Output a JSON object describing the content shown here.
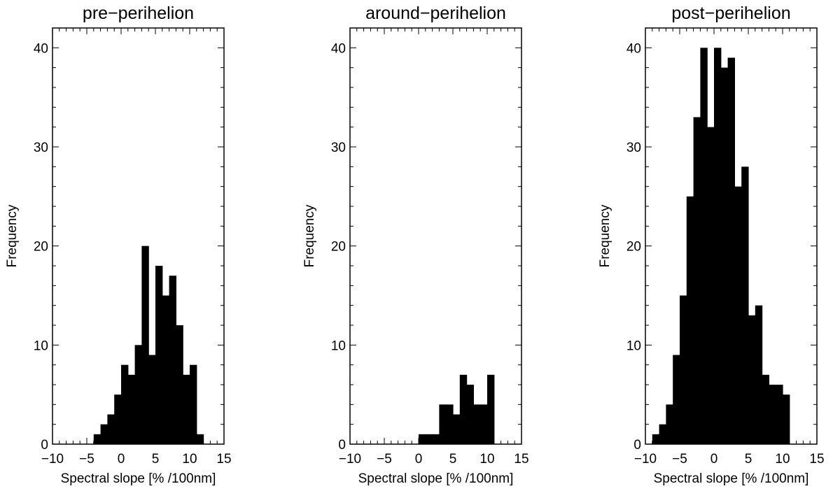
{
  "chart_data": [
    {
      "type": "bar",
      "title": "pre−perihelion",
      "xlabel": "Spectral slope [% /100nm]",
      "ylabel": "Frequency",
      "xlim": [
        -10,
        15
      ],
      "ylim": [
        0,
        42
      ],
      "xticks": [
        "−10",
        "−5",
        "0",
        "5",
        "10",
        "15"
      ],
      "yticks": [
        "0",
        "10",
        "20",
        "30",
        "40"
      ],
      "bin_width": 1,
      "bin_start": [
        -4,
        -3,
        -2,
        -1,
        0,
        1,
        2,
        3,
        4,
        5,
        6,
        7,
        8,
        9,
        10,
        11
      ],
      "values": [
        1,
        2,
        3,
        5,
        8,
        7,
        10,
        20,
        9,
        18,
        15,
        17,
        12,
        7,
        8,
        1
      ]
    },
    {
      "type": "bar",
      "title": "around−perihelion",
      "xlabel": "Spectral slope [% /100nm]",
      "ylabel": "Frequency",
      "xlim": [
        -10,
        15
      ],
      "ylim": [
        0,
        42
      ],
      "xticks": [
        "−10",
        "−5",
        "0",
        "5",
        "10",
        "15"
      ],
      "yticks": [
        "0",
        "10",
        "20",
        "30",
        "40"
      ],
      "bin_width": 1,
      "bin_start": [
        0,
        1,
        2,
        3,
        4,
        5,
        6,
        7,
        8,
        9,
        10
      ],
      "values": [
        1,
        1,
        1,
        4,
        4,
        3,
        7,
        6,
        4,
        4,
        7
      ]
    },
    {
      "type": "bar",
      "title": "post−perihelion",
      "xlabel": "Spectral slope [% /100nm]",
      "ylabel": "Frequency",
      "xlim": [
        -10,
        15
      ],
      "ylim": [
        0,
        42
      ],
      "xticks": [
        "−10",
        "−5",
        "0",
        "5",
        "10",
        "15"
      ],
      "yticks": [
        "0",
        "10",
        "20",
        "30",
        "40"
      ],
      "bin_width": 1,
      "bin_start": [
        -9,
        -8,
        -7,
        -6,
        -5,
        -4,
        -3,
        -2,
        -1,
        0,
        1,
        2,
        3,
        4,
        5,
        6,
        7,
        8,
        9,
        10
      ],
      "values": [
        1,
        2,
        4,
        9,
        15,
        25,
        33,
        40,
        32,
        40,
        38,
        39,
        26,
        28,
        13,
        14,
        7,
        6,
        6,
        5
      ]
    }
  ],
  "colors": {
    "bar_fill": "#000000",
    "axis": "#000000",
    "background": "#ffffff"
  }
}
